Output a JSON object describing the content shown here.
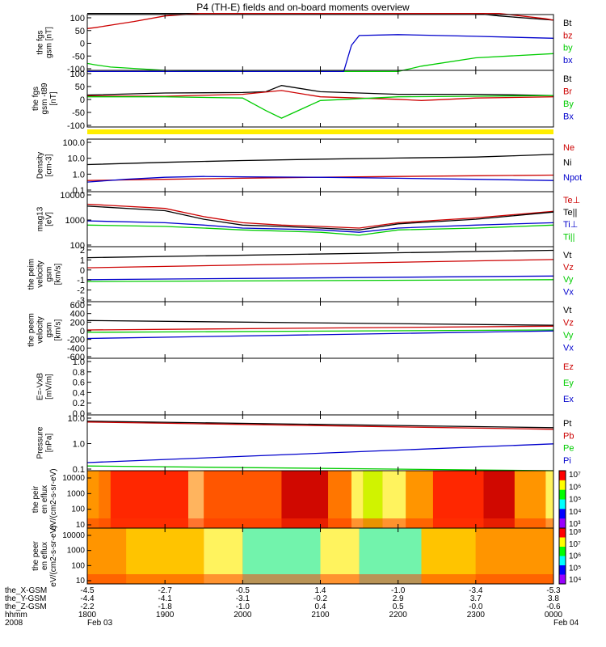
{
  "title": "P4 (TH-E) fields and on-board moments overview",
  "chart_data": [
    {
      "type": "line",
      "ylabel": "the fgs gsm [nT]",
      "ylim": [
        -100,
        100
      ],
      "yticks": [
        "100",
        "50",
        "0",
        "-50",
        "-100"
      ],
      "legend": [
        {
          "name": "Bt",
          "color": "#000000"
        },
        {
          "name": "bz",
          "color": "#cc0000"
        },
        {
          "name": "by",
          "color": "#00cc00"
        },
        {
          "name": "bx",
          "color": "#0000cc"
        }
      ],
      "series": [
        {
          "name": "Bt",
          "color": "#000000",
          "x": [
            1800,
            1900,
            2000,
            2055,
            2100,
            2200,
            2300,
            2330,
            2400
          ],
          "y": [
            110,
            110,
            110,
            110,
            110,
            110,
            110,
            95,
            80
          ]
        },
        {
          "name": "bz",
          "color": "#cc0000",
          "x": [
            1800,
            1810,
            1830,
            1860,
            1900,
            1945,
            1970,
            2330,
            2390,
            2400
          ],
          "y": [
            50,
            53,
            62,
            75,
            95,
            110,
            110,
            110,
            85,
            80
          ]
        },
        {
          "name": "by",
          "color": "#00cc00",
          "x": [
            1800,
            1810,
            1830,
            1900,
            2000,
            2100,
            2200,
            2230,
            2300,
            2400
          ],
          "y": [
            -75,
            -80,
            -88,
            -100,
            -110,
            -110,
            -110,
            -85,
            -55,
            -40
          ]
        },
        {
          "name": "bx",
          "color": "#0000cc",
          "x": [
            1800,
            1900,
            2000,
            2130,
            2140,
            2150,
            2200,
            2300,
            2400
          ],
          "y": [
            -110,
            -110,
            -110,
            -110,
            -10,
            25,
            28,
            22,
            15
          ]
        }
      ]
    },
    {
      "type": "line",
      "ylabel": "the fgs gsm -t89 [nT]",
      "ylim": [
        -125,
        100
      ],
      "yticks": [
        "100",
        "50",
        "0",
        "-50",
        "-100"
      ],
      "legend": [
        {
          "name": "Bt",
          "color": "#000000"
        },
        {
          "name": "Br",
          "color": "#cc0000"
        },
        {
          "name": "By",
          "color": "#00cc00"
        },
        {
          "name": "Bx",
          "color": "#0000cc"
        }
      ],
      "series": [
        {
          "name": "Bt",
          "color": "#000000",
          "x": [
            1800,
            1900,
            2000,
            2030,
            2050,
            2100,
            2200,
            2300,
            2400
          ],
          "y": [
            2,
            10,
            12,
            15,
            40,
            15,
            5,
            5,
            0
          ]
        },
        {
          "name": "Br",
          "color": "#cc0000",
          "x": [
            1800,
            1900,
            2000,
            2050,
            2100,
            2200,
            2230,
            2300,
            2400
          ],
          "y": [
            -2,
            -3,
            5,
            20,
            -5,
            -15,
            -20,
            -10,
            -5
          ]
        },
        {
          "name": "By",
          "color": "#00cc00",
          "x": [
            1800,
            1900,
            2000,
            2030,
            2050,
            2100,
            2200,
            2300,
            2400
          ],
          "y": [
            -5,
            -5,
            -10,
            -60,
            -90,
            -20,
            -5,
            -3,
            0
          ]
        }
      ]
    },
    {
      "type": "line",
      "ylabel": "Density [cm-3]",
      "yscale": "log",
      "ylim": [
        0.1,
        200
      ],
      "yticks": [
        "100.0",
        "10.0",
        "1.0",
        "0.1"
      ],
      "legend": [
        {
          "name": "Ne",
          "color": "#cc0000"
        },
        {
          "name": "Ni",
          "color": "#000000"
        },
        {
          "name": "Npot",
          "color": "#0000cc"
        }
      ],
      "series": [
        {
          "name": "Ni",
          "color": "#000000",
          "x": [
            1800,
            1900,
            2000,
            2100,
            2200,
            2300,
            2350,
            2400
          ],
          "y": [
            5,
            7,
            9,
            11,
            13,
            15,
            18,
            22
          ]
        },
        {
          "name": "Ne",
          "color": "#cc0000",
          "x": [
            1800,
            1900,
            2000,
            2100,
            2200,
            2300,
            2400
          ],
          "y": [
            0.5,
            0.6,
            0.7,
            0.8,
            0.9,
            1.0,
            1.1
          ]
        },
        {
          "name": "Npot",
          "color": "#0000cc",
          "x": [
            1800,
            1850,
            1900,
            1950,
            2000,
            2100,
            2200,
            2300,
            2400
          ],
          "y": [
            0.4,
            0.6,
            0.8,
            0.9,
            0.85,
            0.8,
            0.7,
            0.6,
            0.5
          ]
        }
      ]
    },
    {
      "type": "line",
      "ylabel": "mag13 [eV]",
      "yscale": "log",
      "ylim": [
        50,
        10000
      ],
      "yticks": [
        "10000",
        "1000",
        "100"
      ],
      "legend": [
        {
          "name": "Te⊥",
          "color": "#cc0000"
        },
        {
          "name": "Te||",
          "color": "#000000"
        },
        {
          "name": "Ti⊥",
          "color": "#0000cc"
        },
        {
          "name": "Ti||",
          "color": "#00cc00"
        }
      ],
      "series": [
        {
          "name": "Te⊥",
          "color": "#cc0000",
          "x": [
            1800,
            1900,
            1950,
            2000,
            2050,
            2100,
            2150,
            2200,
            2300,
            2400
          ],
          "y": [
            3000,
            2000,
            900,
            500,
            400,
            350,
            300,
            500,
            800,
            1500
          ]
        },
        {
          "name": "Te||",
          "color": "#000000",
          "x": [
            1800,
            1900,
            1950,
            2000,
            2050,
            2100,
            2150,
            2200,
            2300,
            2400
          ],
          "y": [
            2500,
            1600,
            700,
            400,
            350,
            300,
            250,
            450,
            700,
            1400
          ]
        },
        {
          "name": "Ti⊥",
          "color": "#0000cc",
          "x": [
            1800,
            1900,
            1950,
            2000,
            2100,
            2150,
            2200,
            2300,
            2400
          ],
          "y": [
            600,
            500,
            400,
            300,
            250,
            200,
            300,
            400,
            500
          ]
        },
        {
          "name": "Ti||",
          "color": "#00cc00",
          "x": [
            1800,
            1900,
            1950,
            2000,
            2100,
            2150,
            2200,
            2300,
            2400
          ],
          "y": [
            400,
            350,
            300,
            250,
            200,
            150,
            250,
            300,
            400
          ]
        }
      ]
    },
    {
      "type": "line",
      "ylabel": "the peim velocity gsm [km/s]",
      "ylim": [
        -3,
        3
      ],
      "yticks": [
        "2",
        "1",
        "0",
        "-1",
        "-2",
        "-3"
      ],
      "legend": [
        {
          "name": "Vt",
          "color": "#000000"
        },
        {
          "name": "Vz",
          "color": "#cc0000"
        },
        {
          "name": "Vy",
          "color": "#00cc00"
        },
        {
          "name": "Vx",
          "color": "#0000cc"
        }
      ],
      "series": [
        {
          "name": "Vt",
          "color": "#000000",
          "x": [
            1800,
            2400
          ],
          "y": [
            1.8,
            2.6
          ]
        },
        {
          "name": "Vz",
          "color": "#cc0000",
          "x": [
            1800,
            2400
          ],
          "y": [
            0.7,
            1.6
          ]
        },
        {
          "name": "Vy",
          "color": "#00cc00",
          "x": [
            1800,
            2400
          ],
          "y": [
            -0.8,
            -0.6
          ]
        },
        {
          "name": "Vx",
          "color": "#0000cc",
          "x": [
            1800,
            2400
          ],
          "y": [
            -0.6,
            -0.2
          ]
        }
      ]
    },
    {
      "type": "line",
      "ylabel": "the peem velocity gsm [km/s]",
      "ylim": [
        -600,
        600
      ],
      "yticks": [
        "600",
        "400",
        "200",
        "0",
        "-200",
        "-400",
        "-600"
      ],
      "legend": [
        {
          "name": "Vt",
          "color": "#000000"
        },
        {
          "name": "Vz",
          "color": "#cc0000"
        },
        {
          "name": "Vy",
          "color": "#00cc00"
        },
        {
          "name": "Vx",
          "color": "#0000cc"
        }
      ],
      "series": [
        {
          "name": "Vt",
          "color": "#000000",
          "x": [
            1800,
            2400
          ],
          "y": [
            200,
            100
          ]
        },
        {
          "name": "Vz",
          "color": "#cc0000",
          "x": [
            1800,
            2400
          ],
          "y": [
            0,
            80
          ]
        },
        {
          "name": "Vy",
          "color": "#00cc00",
          "x": [
            1800,
            2400
          ],
          "y": [
            -50,
            0
          ]
        },
        {
          "name": "Vx",
          "color": "#0000cc",
          "x": [
            1800,
            2400
          ],
          "y": [
            -180,
            -20
          ]
        }
      ]
    },
    {
      "type": "line",
      "ylabel": "E=-VxB [mV/m]",
      "ylim": [
        0,
        1
      ],
      "yticks": [
        "1.0",
        "0.8",
        "0.6",
        "0.4",
        "0.2",
        "0.0"
      ],
      "legend": [
        {
          "name": "Ez",
          "color": "#cc0000"
        },
        {
          "name": "Ey",
          "color": "#00cc00"
        },
        {
          "name": "Ex",
          "color": "#0000cc"
        }
      ],
      "series": []
    },
    {
      "type": "line",
      "ylabel": "Pressure [nPa]",
      "yscale": "log",
      "ylim": [
        0.1,
        12
      ],
      "yticks": [
        "10.0",
        "1.0",
        "0.1"
      ],
      "legend": [
        {
          "name": "Pt",
          "color": "#000000"
        },
        {
          "name": "Pb",
          "color": "#cc0000"
        },
        {
          "name": "Pe",
          "color": "#00cc00"
        },
        {
          "name": "Pi",
          "color": "#0000cc"
        }
      ],
      "series": [
        {
          "name": "Pt",
          "color": "#000000",
          "x": [
            1800,
            2400
          ],
          "y": [
            7,
            4
          ]
        },
        {
          "name": "Pb",
          "color": "#cc0000",
          "x": [
            1800,
            2400
          ],
          "y": [
            6.5,
            3.5
          ]
        },
        {
          "name": "Pi",
          "color": "#0000cc",
          "x": [
            1800,
            2400
          ],
          "y": [
            0.2,
            1.0
          ]
        },
        {
          "name": "Pe",
          "color": "#00cc00",
          "x": [
            1800,
            2400
          ],
          "y": [
            0.15,
            0.1
          ]
        }
      ]
    },
    {
      "type": "heatmap",
      "ylabel": "the peir en eflux eV/(cm2-s-sr-eV)",
      "yscale": "log",
      "yticks": [
        "10000",
        "1000",
        "100",
        "10"
      ],
      "colorbar_ticks": [
        "10⁷",
        "10⁶",
        "10⁵",
        "10⁴",
        "10³"
      ],
      "colors": [
        "#ff0000",
        "#ffcc00",
        "#ffff66",
        "#aaff00",
        "#9b0000"
      ],
      "bands": [
        {
          "x0": 1800,
          "x1": 1815,
          "c": "#ff9900"
        },
        {
          "x0": 1815,
          "x1": 1830,
          "c": "#ff7700"
        },
        {
          "x0": 1830,
          "x1": 1930,
          "c": "#ff2200"
        },
        {
          "x0": 1930,
          "x1": 1950,
          "c": "#ffbb66"
        },
        {
          "x0": 1950,
          "x1": 2050,
          "c": "#ff5500"
        },
        {
          "x0": 2050,
          "x1": 2110,
          "c": "#cc0000"
        },
        {
          "x0": 2110,
          "x1": 2140,
          "c": "#ff7700"
        },
        {
          "x0": 2140,
          "x1": 2155,
          "c": "#ffff66"
        },
        {
          "x0": 2155,
          "x1": 2180,
          "c": "#ccff00"
        },
        {
          "x0": 2180,
          "x1": 2210,
          "c": "#ffff66"
        },
        {
          "x0": 2210,
          "x1": 2245,
          "c": "#ff9900"
        },
        {
          "x0": 2245,
          "x1": 2310,
          "c": "#ff2200"
        },
        {
          "x0": 2310,
          "x1": 2350,
          "c": "#cc0000"
        },
        {
          "x0": 2350,
          "x1": 2390,
          "c": "#ff9900"
        },
        {
          "x0": 2390,
          "x1": 2400,
          "c": "#ffff66"
        }
      ]
    },
    {
      "type": "heatmap",
      "ylabel": "the peer en eflux eV/(cm2-s-sr-eV)",
      "yscale": "log",
      "yticks": [
        "10000",
        "1000",
        "100",
        "10"
      ],
      "colorbar_ticks": [
        "10⁸",
        "10⁷",
        "10⁶",
        "10⁵",
        "10⁴"
      ],
      "colors": [
        "#ffcc00",
        "#ffff66",
        "#00ffaa",
        "#00ccff",
        "#ff0000"
      ],
      "bands": [
        {
          "x0": 1800,
          "x1": 1850,
          "c": "#ff9900"
        },
        {
          "x0": 1850,
          "x1": 1950,
          "c": "#ffcc00"
        },
        {
          "x0": 1950,
          "x1": 2000,
          "c": "#ffff66"
        },
        {
          "x0": 2000,
          "x1": 2100,
          "c": "#66ffbb"
        },
        {
          "x0": 2100,
          "x1": 2150,
          "c": "#ffff66"
        },
        {
          "x0": 2150,
          "x1": 2230,
          "c": "#66ffbb"
        },
        {
          "x0": 2230,
          "x1": 2300,
          "c": "#ffcc00"
        },
        {
          "x0": 2300,
          "x1": 2400,
          "c": "#ff9900"
        }
      ]
    }
  ],
  "xaxis": {
    "row_labels": [
      "the_X-GSM",
      "the_Y-GSM",
      "the_Z-GSM",
      "hhmm",
      "2008"
    ],
    "columns": [
      {
        "vals": [
          "-4.5",
          "-4.4",
          "-2.2",
          "1800",
          "Feb 03"
        ]
      },
      {
        "vals": [
          "-2.7",
          "-4.1",
          "-1.8",
          "1900",
          ""
        ]
      },
      {
        "vals": [
          "-0.5",
          "-3.1",
          "-1.0",
          "2000",
          ""
        ]
      },
      {
        "vals": [
          "1.4",
          "-0.2",
          "0.4",
          "2100",
          ""
        ]
      },
      {
        "vals": [
          "-1.0",
          "2.9",
          "0.5",
          "2200",
          ""
        ]
      },
      {
        "vals": [
          "-3.4",
          "3.7",
          "-0.0",
          "2300",
          ""
        ]
      },
      {
        "vals": [
          "-5.3",
          "3.8",
          "-0.6",
          "0000",
          "Feb 04"
        ]
      }
    ]
  }
}
